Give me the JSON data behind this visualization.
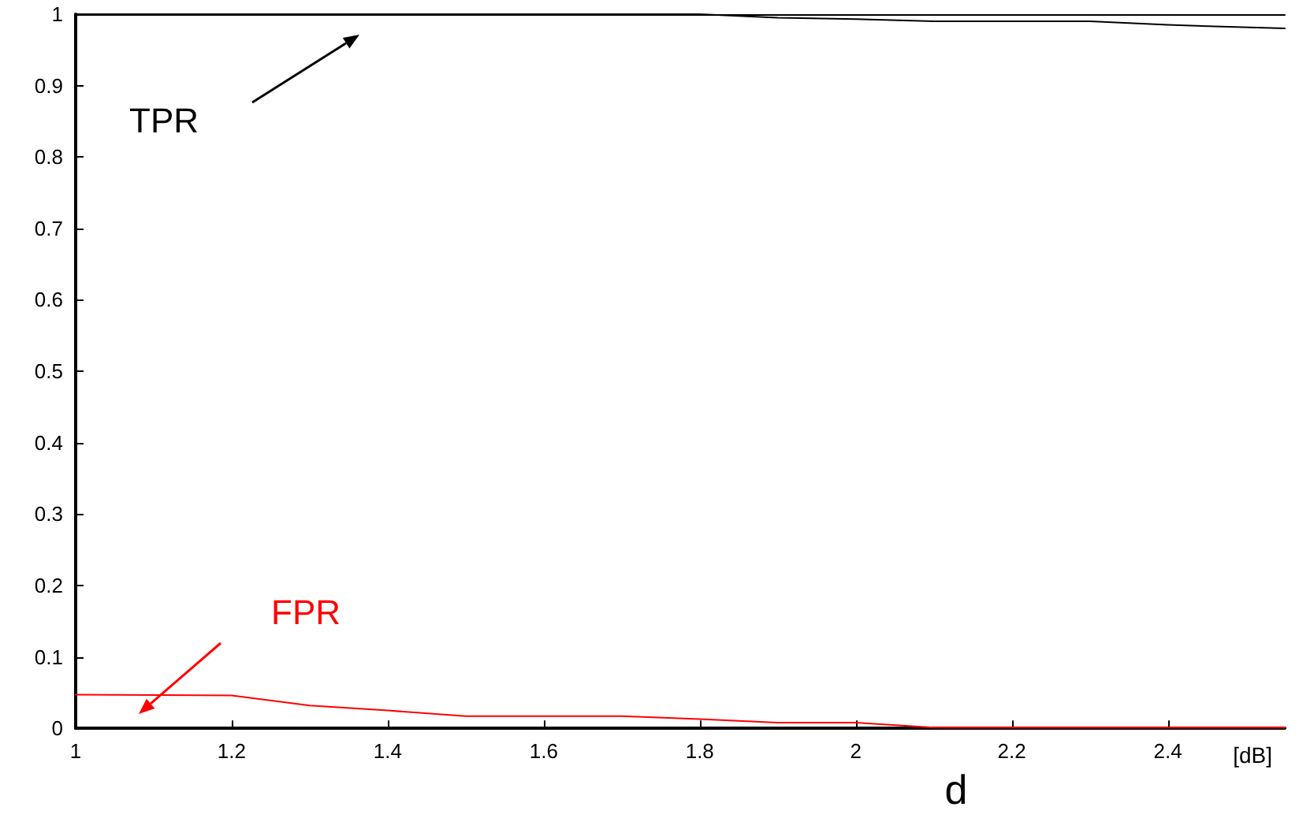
{
  "chart_data": {
    "type": "line",
    "xlabel": "d",
    "xlim": [
      1,
      2.55
    ],
    "xticks": [
      1,
      1.2,
      1.4,
      1.6,
      1.8,
      2,
      2.2,
      2.4
    ],
    "ylim": [
      0,
      1
    ],
    "yticks": [
      0,
      0.1,
      0.2,
      0.3,
      0.4,
      0.5,
      0.6,
      0.7,
      0.8,
      0.9,
      1
    ],
    "grid": false,
    "marker": "none",
    "line_style": "solid",
    "series": [
      {
        "color": "#000000",
        "x": [
          1,
          1.8,
          1.9,
          2,
          2.1,
          2.3,
          2.4,
          2.55
        ],
        "values": [
          1,
          1,
          0.995,
          0.993,
          0.99,
          0.99,
          0.985,
          0.98
        ]
      },
      {
        "color": "#ff0000",
        "x": [
          1,
          1.2,
          1.3,
          1.4,
          1.5,
          1.7,
          1.8,
          1.9,
          2,
          2.1,
          2.55
        ],
        "values": [
          0.047,
          0.046,
          0.032,
          0.025,
          0.017,
          0.017,
          0.013,
          0.008,
          0.008,
          0.001,
          0.001
        ]
      }
    ],
    "annotations": [
      "TPR",
      "FPR",
      "[dB]"
    ]
  }
}
